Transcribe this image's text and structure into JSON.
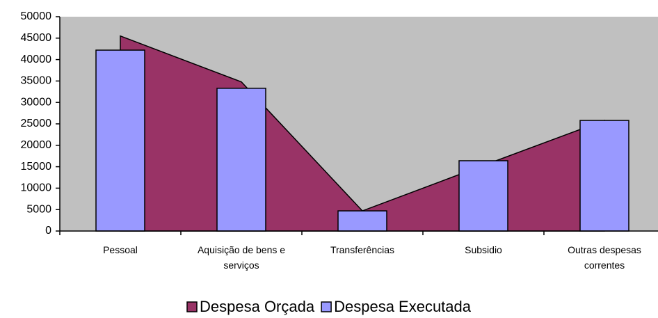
{
  "chart_data": {
    "type": "bar_area",
    "categories": [
      "Pessoal",
      "Aquisição de bens e serviços",
      "Transferências",
      "Subsidio",
      "Outras despesas correntes"
    ],
    "series": [
      {
        "name": "Despesa Orçada",
        "type": "area",
        "color": "#993366",
        "values": [
          45500,
          34800,
          4700,
          15300,
          25800
        ]
      },
      {
        "name": "Despesa Executada",
        "type": "bar",
        "color": "#9999ff",
        "values": [
          42200,
          33300,
          4700,
          16400,
          25800
        ]
      }
    ],
    "ylim": [
      0,
      50000
    ],
    "yticks": [
      0,
      5000,
      10000,
      15000,
      20000,
      25000,
      30000,
      35000,
      40000,
      45000,
      50000
    ],
    "plot_background": "#c0c0c0",
    "legend": "bottom"
  }
}
